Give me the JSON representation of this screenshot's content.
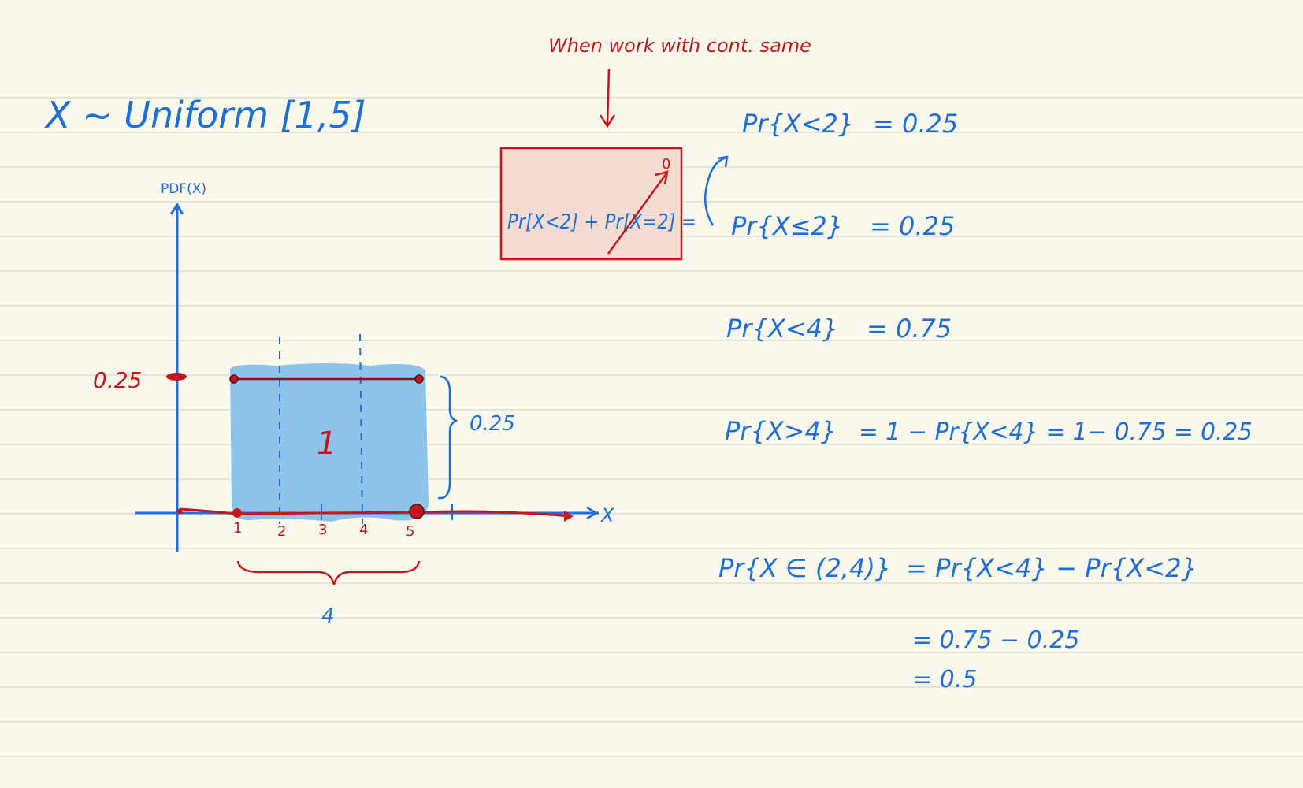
{
  "colors": {
    "paper": "#fbf8ec",
    "rule_line": "#d9ddd9",
    "ink_blue": "#1f6fd9",
    "ink_red": "#c4161c",
    "highlight_blue": "#8ec3ea",
    "box_fill": "#f4dcd2"
  },
  "heading": {
    "distribution": "X ~ Uniform [1,5]"
  },
  "graph": {
    "y_axis_label": "PDF(X)",
    "x_axis_label": "X",
    "height_label": "0.25",
    "brace_height_label": "0.25",
    "area_label": "1",
    "width_label": "4",
    "tick_labels": [
      "1",
      "2",
      "3",
      "4",
      "5"
    ]
  },
  "note": {
    "annotation": "When work with cont. same",
    "box_expression": "Pr[X<2] + Pr[X=2] =",
    "zero_mark": "0"
  },
  "equations": [
    {
      "lhs": "Pr{X<2}",
      "rhs": "= 0.25"
    },
    {
      "lhs": "Pr{X≤2}",
      "rhs": "= 0.25"
    },
    {
      "lhs": "Pr{X<4}",
      "rhs": "= 0.75"
    },
    {
      "lhs": "Pr{X>4}",
      "rhs": "= 1 − Pr{X<4} = 1− 0.75 = 0.25"
    },
    {
      "lhs": "Pr{X ∈ (2,4)}",
      "rhs": "= Pr{X<4} − Pr{X<2}"
    },
    {
      "lhs": "",
      "rhs": "= 0.75 − 0.25"
    },
    {
      "lhs": "",
      "rhs": "= 0.5"
    }
  ]
}
